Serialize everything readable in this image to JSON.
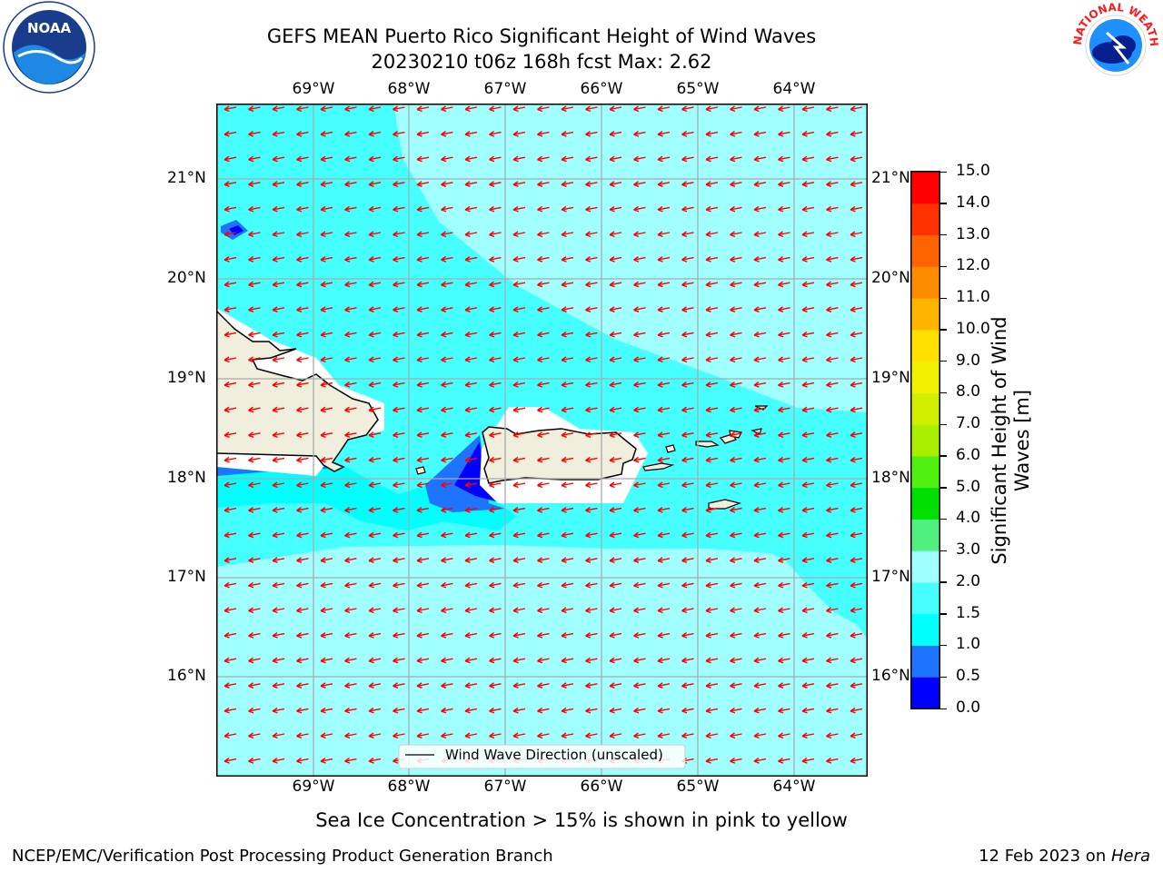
{
  "title_line1": "GEFS MEAN Puerto Rico Significant Height of Wind Waves",
  "title_line2": "20230210 t06z 168h fcst   Max: 2.62",
  "lon_labels": [
    "69°W",
    "68°W",
    "67°W",
    "66°W",
    "65°W",
    "64°W"
  ],
  "lat_labels": [
    "21°N",
    "20°N",
    "19°N",
    "18°N",
    "17°N",
    "16°N"
  ],
  "legend_label": "Wind Wave Direction (unscaled)",
  "colorbar": {
    "label": "Significant Height of Wind Waves [m]",
    "ticks": [
      "0.0",
      "0.5",
      "1.0",
      "1.5",
      "2.0",
      "3.0",
      "4.0",
      "5.0",
      "6.0",
      "7.0",
      "8.0",
      "9.0",
      "10.0",
      "11.0",
      "12.0",
      "13.0",
      "14.0",
      "15.0"
    ],
    "colors": [
      "#0000ff",
      "#1e73ff",
      "#00ffff",
      "#46ffff",
      "#a0ffff",
      "#50f080",
      "#00e000",
      "#50f010",
      "#aaee00",
      "#d0f000",
      "#f0f000",
      "#ffe000",
      "#ffb400",
      "#ff8c00",
      "#ff6400",
      "#ff3200",
      "#ff0000"
    ]
  },
  "ice_note": "Sea Ice Concentration > 15% is shown in pink to yellow",
  "footer_left": "NCEP/EMC/Verification Post Processing Product Generation Branch",
  "footer_right_date": "12 Feb 2023 on ",
  "footer_right_host": "Hera",
  "logos": {
    "left": "NOAA",
    "right": "NATIONAL WEATHER SERVICE"
  },
  "colors": {
    "land": "#f0eedc",
    "arrow": "#ff0000",
    "grid": "#aaaaaa"
  }
}
